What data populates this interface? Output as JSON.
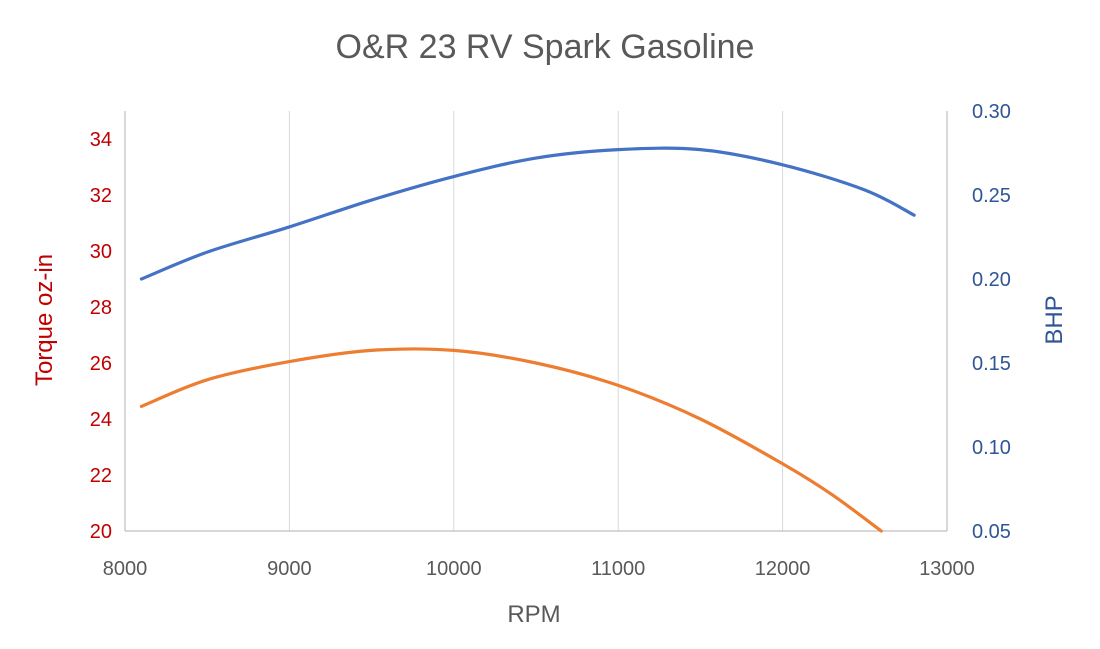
{
  "chart_data": {
    "type": "line",
    "title": "O&R 23 RV Spark Gasoline",
    "xlabel": "RPM",
    "ylabel_left": "Torque oz-in",
    "ylabel_right": "BHP",
    "xlim": [
      8000,
      13000
    ],
    "ylim_left": [
      20,
      35
    ],
    "ylim_right": [
      0.05,
      0.3
    ],
    "x_ticks": [
      "8000",
      "9000",
      "10000",
      "11000",
      "12000",
      "13000"
    ],
    "y_left_ticks": [
      "20",
      "22",
      "24",
      "26",
      "28",
      "30",
      "32",
      "34"
    ],
    "y_right_ticks": [
      "0.05",
      "0.10",
      "0.15",
      "0.20",
      "0.25",
      "0.30"
    ],
    "grid": true,
    "series": [
      {
        "axis": "left",
        "color": "#ed7d31",
        "x": [
          8100,
          8500,
          9000,
          9500,
          10000,
          10500,
          11000,
          11500,
          12000,
          12300,
          12600
        ],
        "values": [
          24.45,
          25.4,
          26.05,
          26.45,
          26.45,
          26.0,
          25.2,
          24.0,
          22.4,
          21.3,
          20.0
        ]
      },
      {
        "axis": "right",
        "color": "#4472c4",
        "x": [
          8100,
          8500,
          9000,
          9500,
          10000,
          10500,
          11000,
          11500,
          12000,
          12500,
          12800
        ],
        "values": [
          0.2,
          0.216,
          0.231,
          0.247,
          0.261,
          0.272,
          0.277,
          0.277,
          0.268,
          0.253,
          0.238
        ]
      }
    ]
  }
}
